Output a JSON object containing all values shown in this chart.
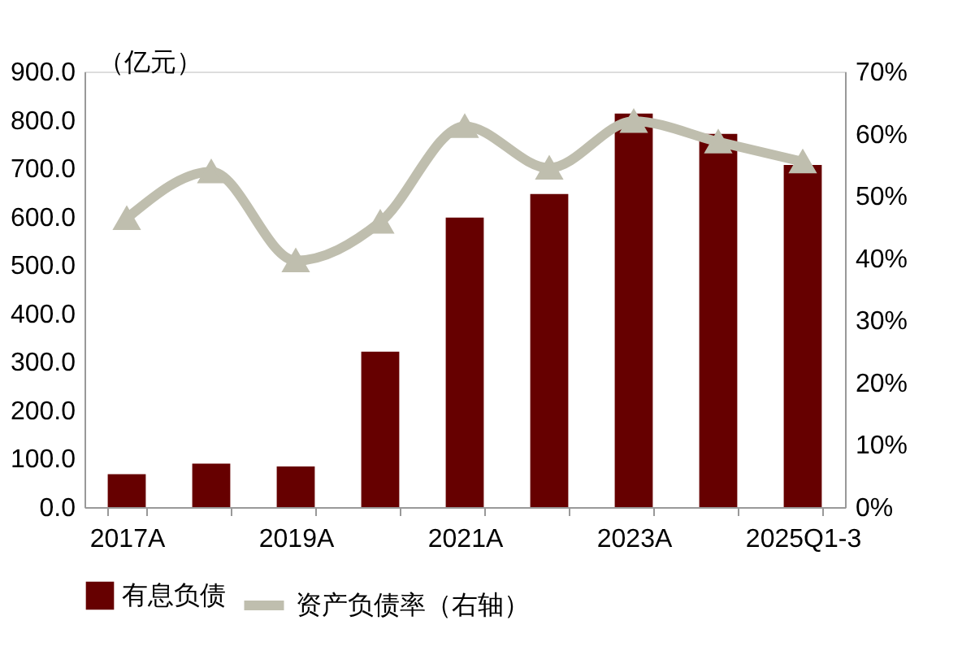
{
  "chart_data": {
    "type": "bar",
    "ylabel": "（亿元）",
    "categories": [
      "2017A",
      null,
      "2019A",
      null,
      "2021A",
      null,
      "2023A",
      null,
      "2025Q1-3"
    ],
    "series": [
      {
        "name": "有息负债",
        "color": "#660000",
        "values": [
          68,
          90,
          84,
          321,
          598,
          647,
          813,
          771,
          707
        ]
      },
      {
        "name": "资产负债率（右轴）",
        "type": "line",
        "axis": "y2",
        "color": "#bfbeae",
        "marker": "triangle",
        "values": [
          46.4,
          53.9,
          39.6,
          45.8,
          61.2,
          54.5,
          62.0,
          58.7,
          55.5
        ]
      }
    ],
    "ylim": [
      0,
      900
    ],
    "yticks": [
      {
        "value": 0,
        "label": "0.0"
      },
      {
        "value": 100,
        "label": "100.0"
      },
      {
        "value": 200,
        "label": "200.0"
      },
      {
        "value": 300,
        "label": "300.0"
      },
      {
        "value": 400,
        "label": "400.0"
      },
      {
        "value": 500,
        "label": "500.0"
      },
      {
        "value": 600,
        "label": "600.0"
      },
      {
        "value": 700,
        "label": "700.0"
      },
      {
        "value": 800,
        "label": "800.0"
      },
      {
        "value": 900,
        "label": "900.0"
      }
    ],
    "y2lim": [
      0,
      70
    ],
    "y2ticks": [
      {
        "value": 0,
        "label": "0%"
      },
      {
        "value": 10,
        "label": "10%"
      },
      {
        "value": 20,
        "label": "20%"
      },
      {
        "value": 30,
        "label": "30%"
      },
      {
        "value": 40,
        "label": "40%"
      },
      {
        "value": 50,
        "label": "50%"
      },
      {
        "value": 60,
        "label": "60%"
      },
      {
        "value": 70,
        "label": "70%"
      }
    ],
    "grid": false,
    "legend": "bottom"
  }
}
